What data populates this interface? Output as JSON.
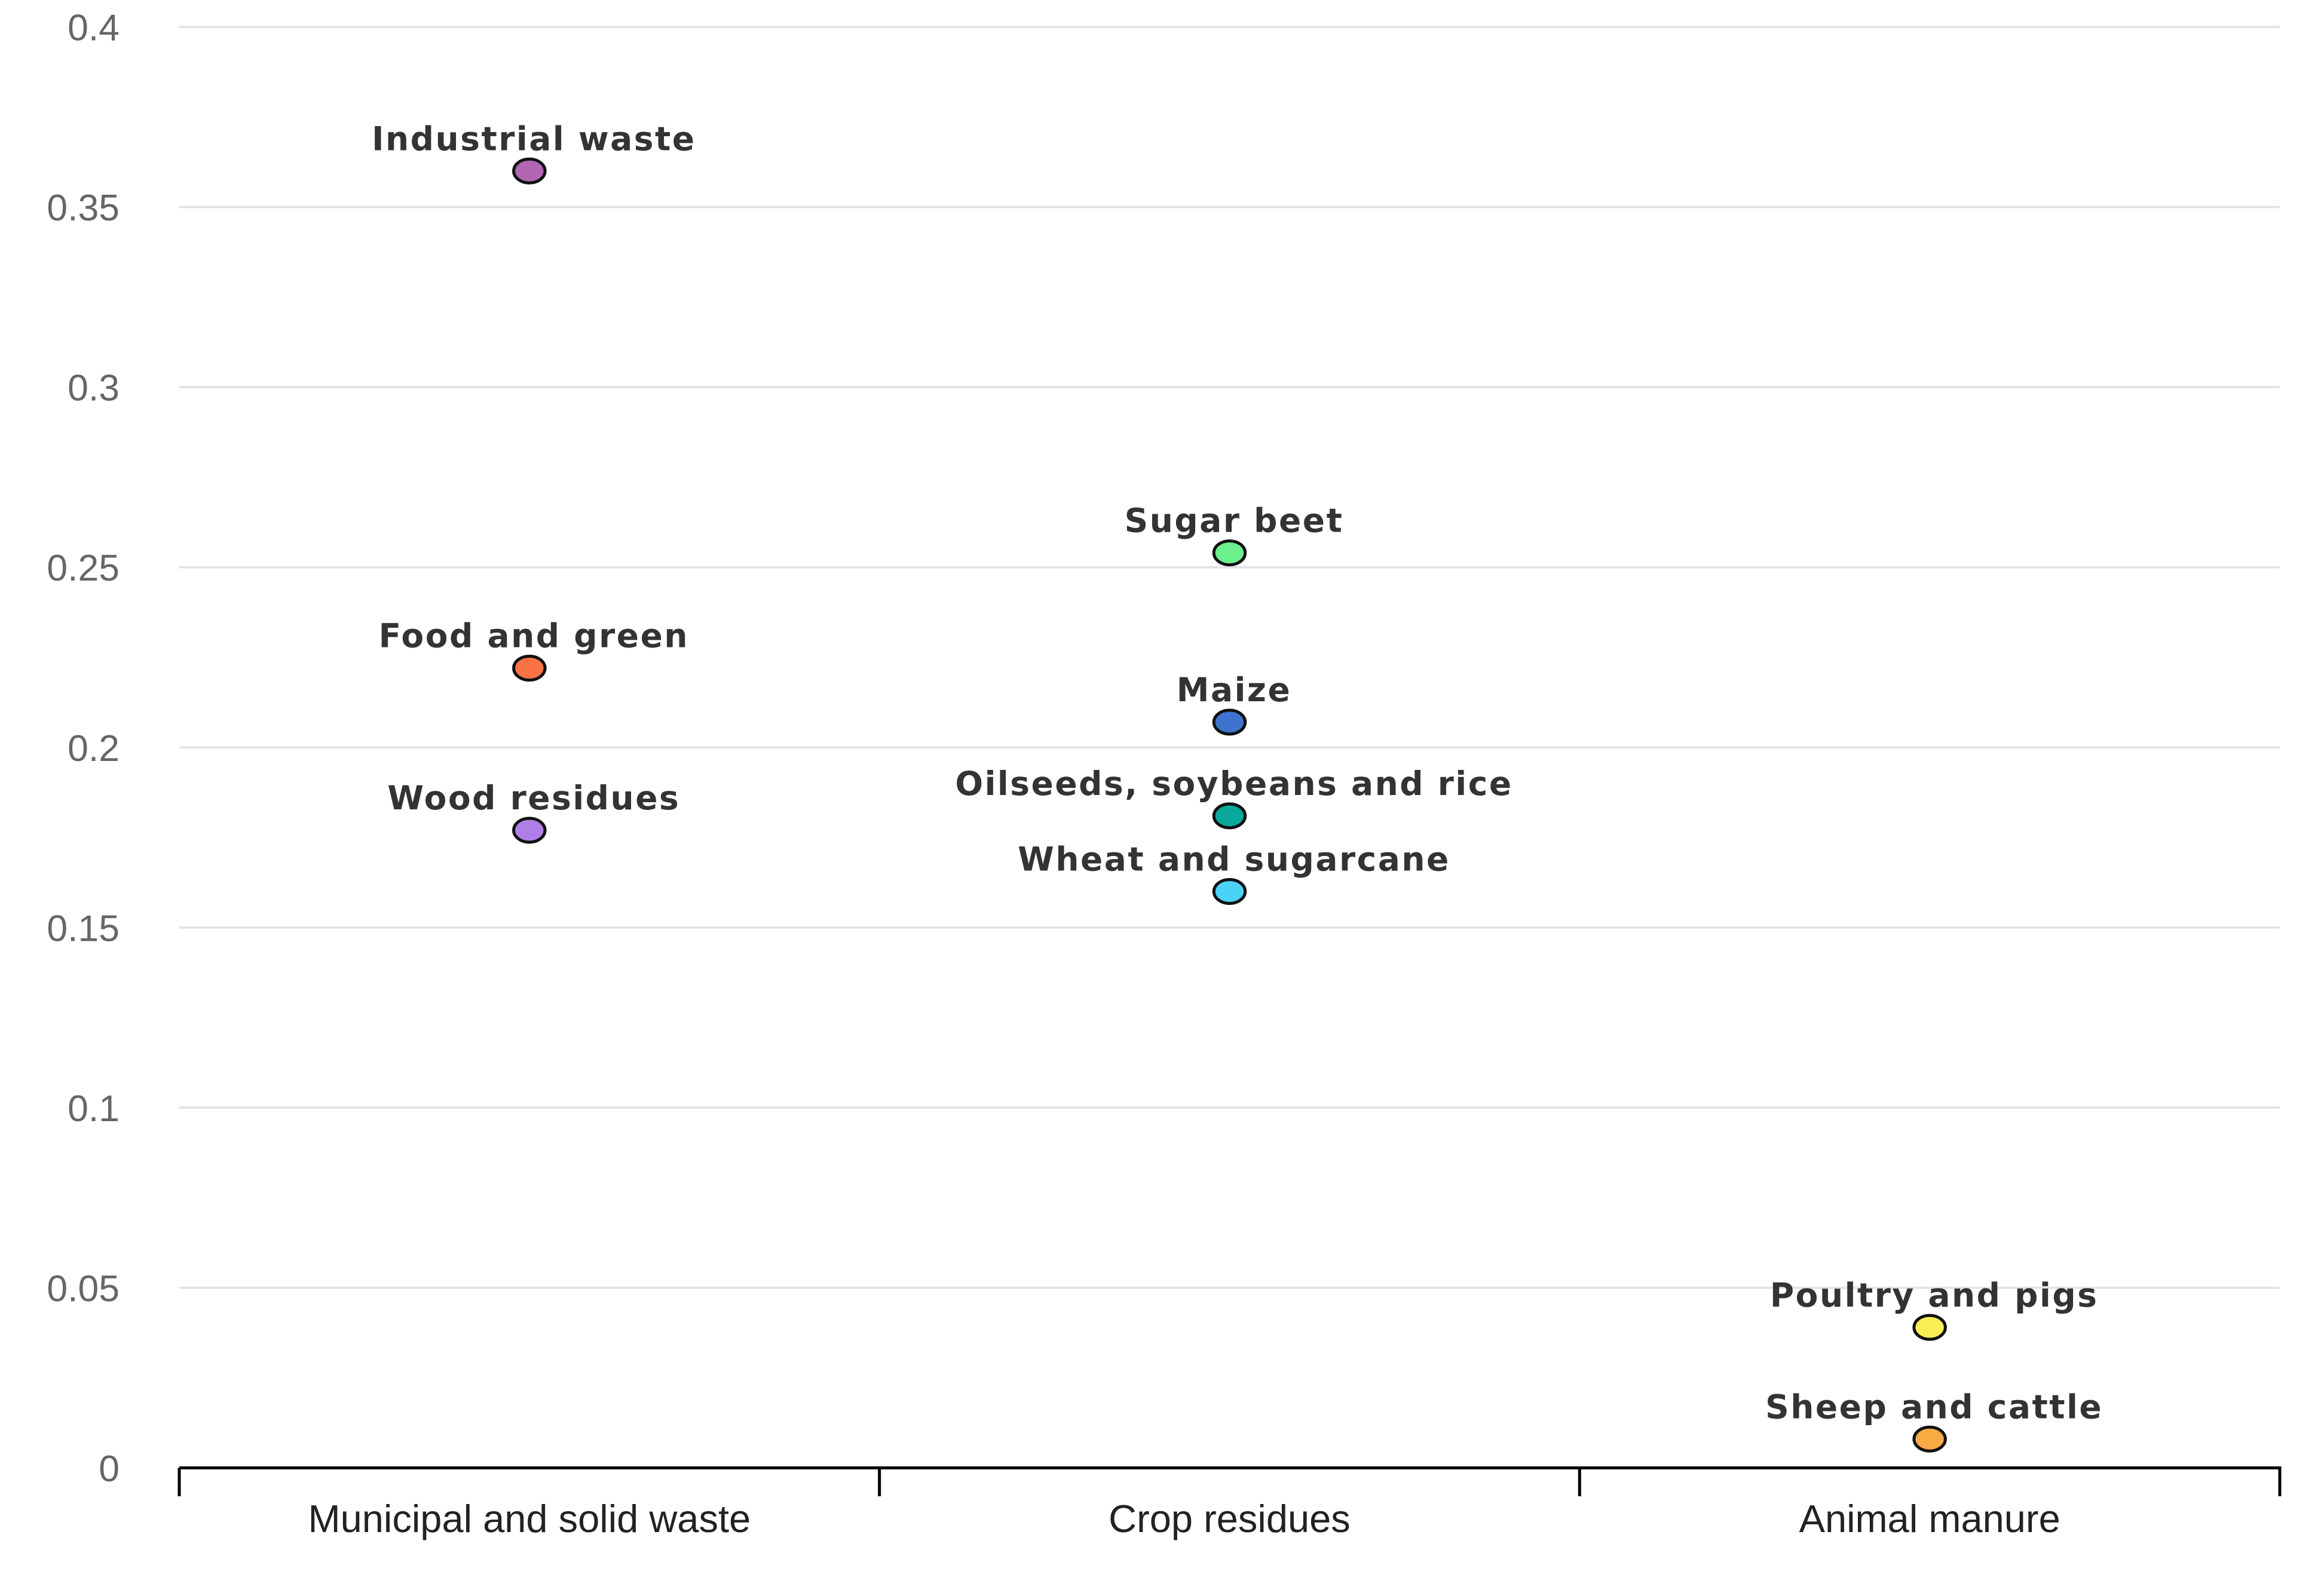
{
  "chart_data": {
    "type": "scatter",
    "title": "",
    "xlabel": "",
    "ylabel": "",
    "categories": [
      "Municipal and solid waste",
      "Crop residues",
      "Animal manure"
    ],
    "ylim": [
      0,
      0.4
    ],
    "yticks": [
      "0",
      "0.05",
      "0.1",
      "0.15",
      "0.2",
      "0.25",
      "0.3",
      "0.35",
      "0.4"
    ],
    "grid": true,
    "points": [
      {
        "label": "Industrial waste",
        "category": 0,
        "y": 0.36,
        "color": "#b066b2"
      },
      {
        "label": "Food and green",
        "category": 0,
        "y": 0.222,
        "color": "#fb7244"
      },
      {
        "label": "Wood residues",
        "category": 0,
        "y": 0.177,
        "color": "#b07ee8"
      },
      {
        "label": "Sugar beet",
        "category": 1,
        "y": 0.254,
        "color": "#6cf08e"
      },
      {
        "label": "Maize",
        "category": 1,
        "y": 0.207,
        "color": "#3e74cf"
      },
      {
        "label": "Oilseeds, soybeans and rice",
        "category": 1,
        "y": 0.181,
        "color": "#0aa89a"
      },
      {
        "label": "Wheat and sugarcane",
        "category": 1,
        "y": 0.16,
        "color": "#4ad2f7"
      },
      {
        "label": "Poultry and pigs",
        "category": 2,
        "y": 0.039,
        "color": "#fbee55"
      },
      {
        "label": "Sheep and cattle",
        "category": 2,
        "y": 0.008,
        "color": "#f7ab42"
      }
    ]
  }
}
